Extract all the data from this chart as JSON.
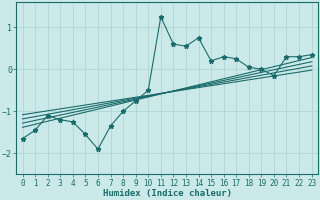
{
  "x": [
    0,
    1,
    2,
    3,
    4,
    5,
    6,
    7,
    8,
    9,
    10,
    11,
    12,
    13,
    14,
    15,
    16,
    17,
    18,
    19,
    20,
    21,
    22,
    23
  ],
  "y_main": [
    -1.65,
    -1.45,
    -1.1,
    -1.2,
    -1.25,
    -1.55,
    -1.9,
    -1.35,
    -1.0,
    -0.75,
    -0.5,
    1.25,
    0.6,
    0.55,
    0.75,
    0.2,
    0.3,
    0.25,
    0.05,
    0.0,
    -0.15,
    0.3,
    0.3,
    0.35
  ],
  "regression_lines": [
    {
      "x0": 0,
      "y0": -1.38,
      "x1": 23,
      "y1": 0.28
    },
    {
      "x0": 0,
      "y0": -1.28,
      "x1": 23,
      "y1": 0.18
    },
    {
      "x0": 0,
      "y0": -1.18,
      "x1": 23,
      "y1": 0.08
    },
    {
      "x0": 0,
      "y0": -1.08,
      "x1": 23,
      "y1": -0.02
    }
  ],
  "xlim": [
    -0.5,
    23.5
  ],
  "ylim": [
    -2.5,
    1.6
  ],
  "yticks": [
    -2,
    -1,
    0,
    1
  ],
  "xticks": [
    0,
    1,
    2,
    3,
    4,
    5,
    6,
    7,
    8,
    9,
    10,
    11,
    12,
    13,
    14,
    15,
    16,
    17,
    18,
    19,
    20,
    21,
    22,
    23
  ],
  "xlabel": "Humidex (Indice chaleur)",
  "bg_color": "#cce9e9",
  "grid_color": "#aad0d0",
  "line_color": "#1a6b6b",
  "line_width": 0.8,
  "marker": "*",
  "marker_size": 3.5,
  "xlabel_fontsize": 6.5,
  "tick_fontsize": 5.5
}
